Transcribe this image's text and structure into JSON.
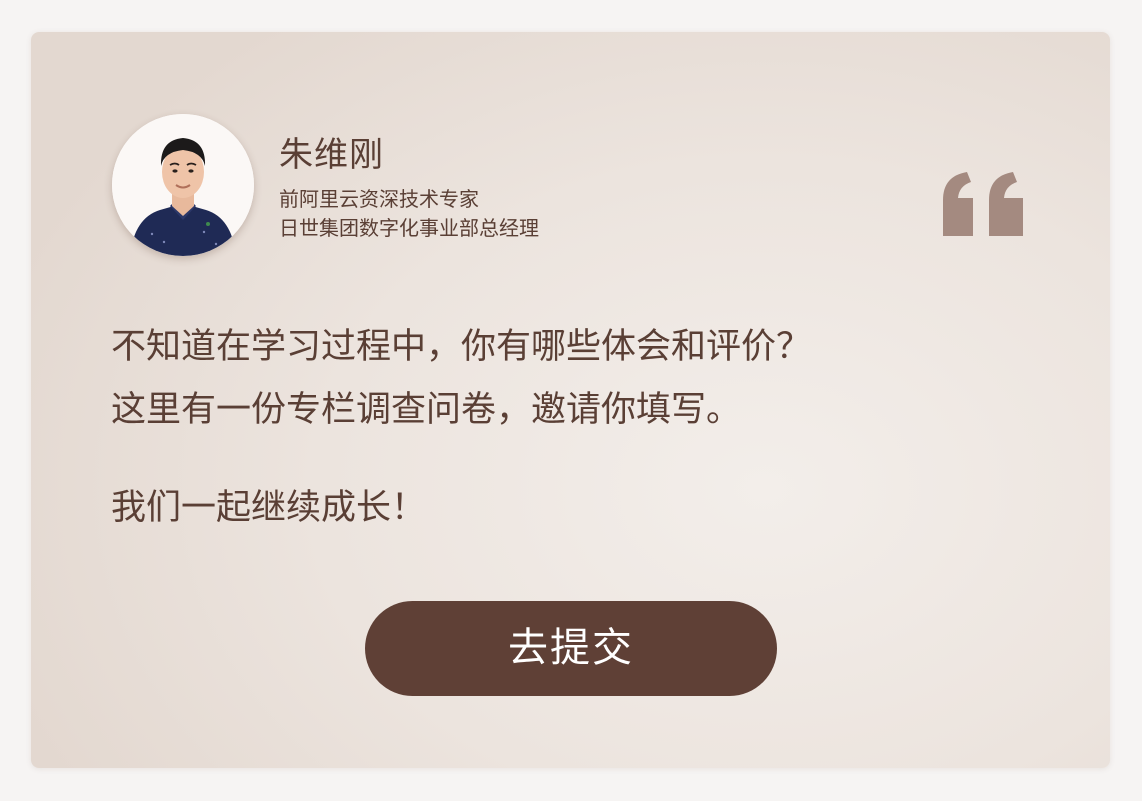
{
  "profile": {
    "name": "朱维刚",
    "title_1": "前阿里云资深技术专家",
    "title_2": "日世集团数字化事业部总经理"
  },
  "message": {
    "line_1": "不知道在学习过程中，你有哪些体会和评价？",
    "line_2": "这里有一份专栏调查问卷，邀请你填写。",
    "line_3": "我们一起继续成长！"
  },
  "action": {
    "submit_label": "去提交"
  },
  "icons": {
    "avatar": "person-portrait-icon",
    "quote": "quotation-mark-icon"
  },
  "colors": {
    "text": "#5a3f35",
    "button": "#5f4036",
    "quote": "#a48a80"
  }
}
